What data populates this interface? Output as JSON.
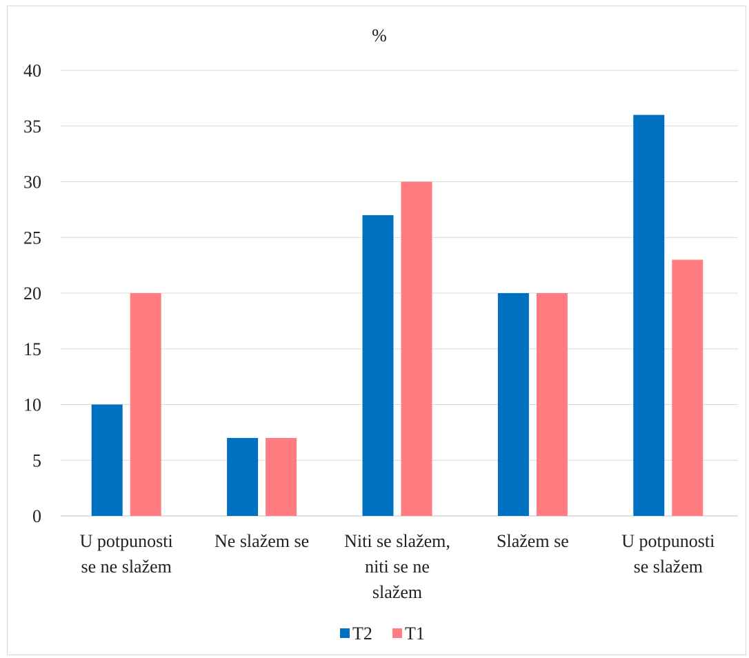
{
  "chart_data": {
    "type": "bar",
    "title": "%",
    "xlabel": "",
    "ylabel": "",
    "ylim": [
      0,
      40
    ],
    "yticks": [
      0,
      5,
      10,
      15,
      20,
      25,
      30,
      35,
      40
    ],
    "grid": true,
    "legend_position": "bottom",
    "categories": [
      [
        "U potpunosti",
        "se ne slažem"
      ],
      [
        "Ne slažem se"
      ],
      [
        "Niti se slažem,",
        "niti se ne",
        "slažem"
      ],
      [
        "Slažem se"
      ],
      [
        "U potpunosti",
        "se slažem"
      ]
    ],
    "series": [
      {
        "name": "T2",
        "color": "#0070c0",
        "values": [
          10,
          7,
          27,
          20,
          36
        ]
      },
      {
        "name": "T1",
        "color": "#ff7c80",
        "values": [
          20,
          7,
          30,
          20,
          23
        ]
      }
    ]
  }
}
